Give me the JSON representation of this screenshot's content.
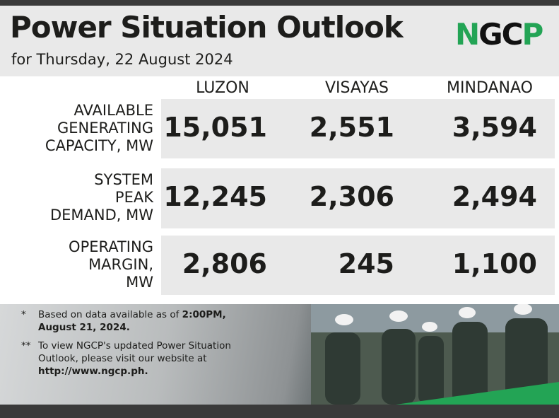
{
  "header": {
    "title": "Power Situation Outlook",
    "subtitle": "for Thursday, 22 August 2024",
    "logo": "NGCP"
  },
  "table": {
    "columns": [
      "LUZON",
      "VISAYAS",
      "MINDANAO"
    ],
    "rows": [
      {
        "label": [
          "AVAILABLE",
          "GENERATING",
          "CAPACITY, MW"
        ],
        "values": [
          "15,051",
          "2,551",
          "3,594"
        ]
      },
      {
        "label": [
          "SYSTEM",
          "PEAK",
          "DEMAND, MW"
        ],
        "values": [
          "12,245",
          "2,306",
          "2,494"
        ]
      },
      {
        "label": [
          "OPERATING",
          "MARGIN,",
          "MW"
        ],
        "values": [
          "2,806",
          "245",
          "1,100"
        ]
      }
    ]
  },
  "notes": [
    {
      "marker": "*",
      "text": "Based on data available as of ",
      "bold": "2:00PM, August 21, 2024."
    },
    {
      "marker": "**",
      "text": "To view NGCP's updated Power Situation Outlook, please visit our website at ",
      "bold": "http://www.ngcp.ph."
    }
  ]
}
